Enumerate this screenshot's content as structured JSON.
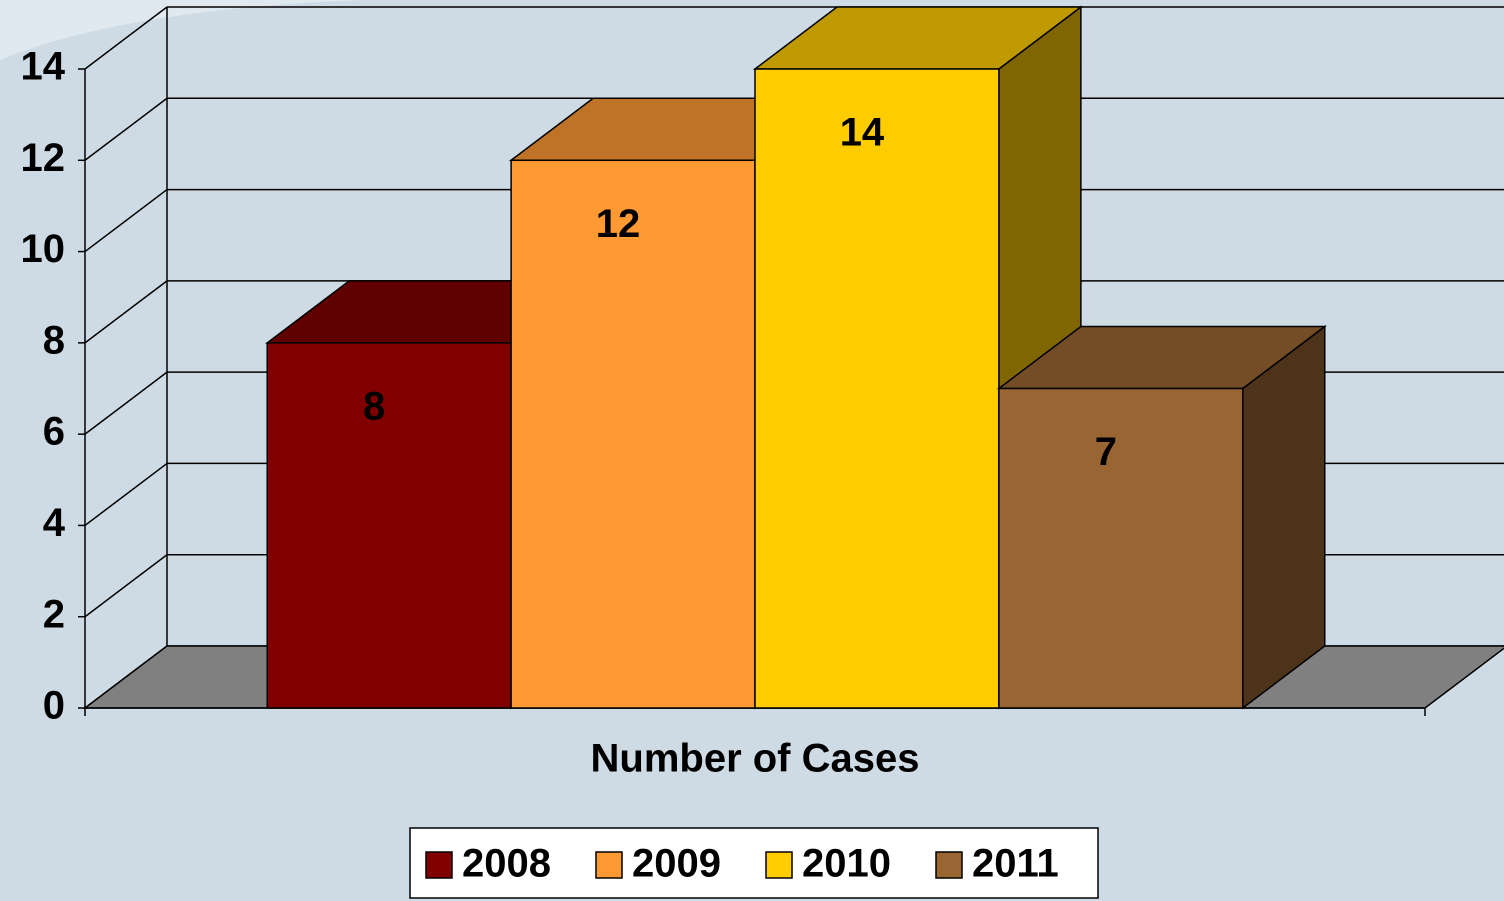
{
  "chart_data": {
    "type": "bar",
    "categories": [
      "Number of Cases"
    ],
    "series": [
      {
        "name": "2008",
        "color": "#800000",
        "values": [
          8
        ]
      },
      {
        "name": "2009",
        "color": "#ff9933",
        "values": [
          12
        ]
      },
      {
        "name": "2010",
        "color": "#ffcc00",
        "values": [
          14
        ]
      },
      {
        "name": "2011",
        "color": "#996633",
        "values": [
          7
        ]
      }
    ],
    "ylim": [
      0,
      14
    ],
    "yticks": [
      0,
      2,
      4,
      6,
      8,
      10,
      12,
      14
    ],
    "grid": true,
    "legend": "bottom",
    "data_labels": true,
    "three_d": true
  }
}
